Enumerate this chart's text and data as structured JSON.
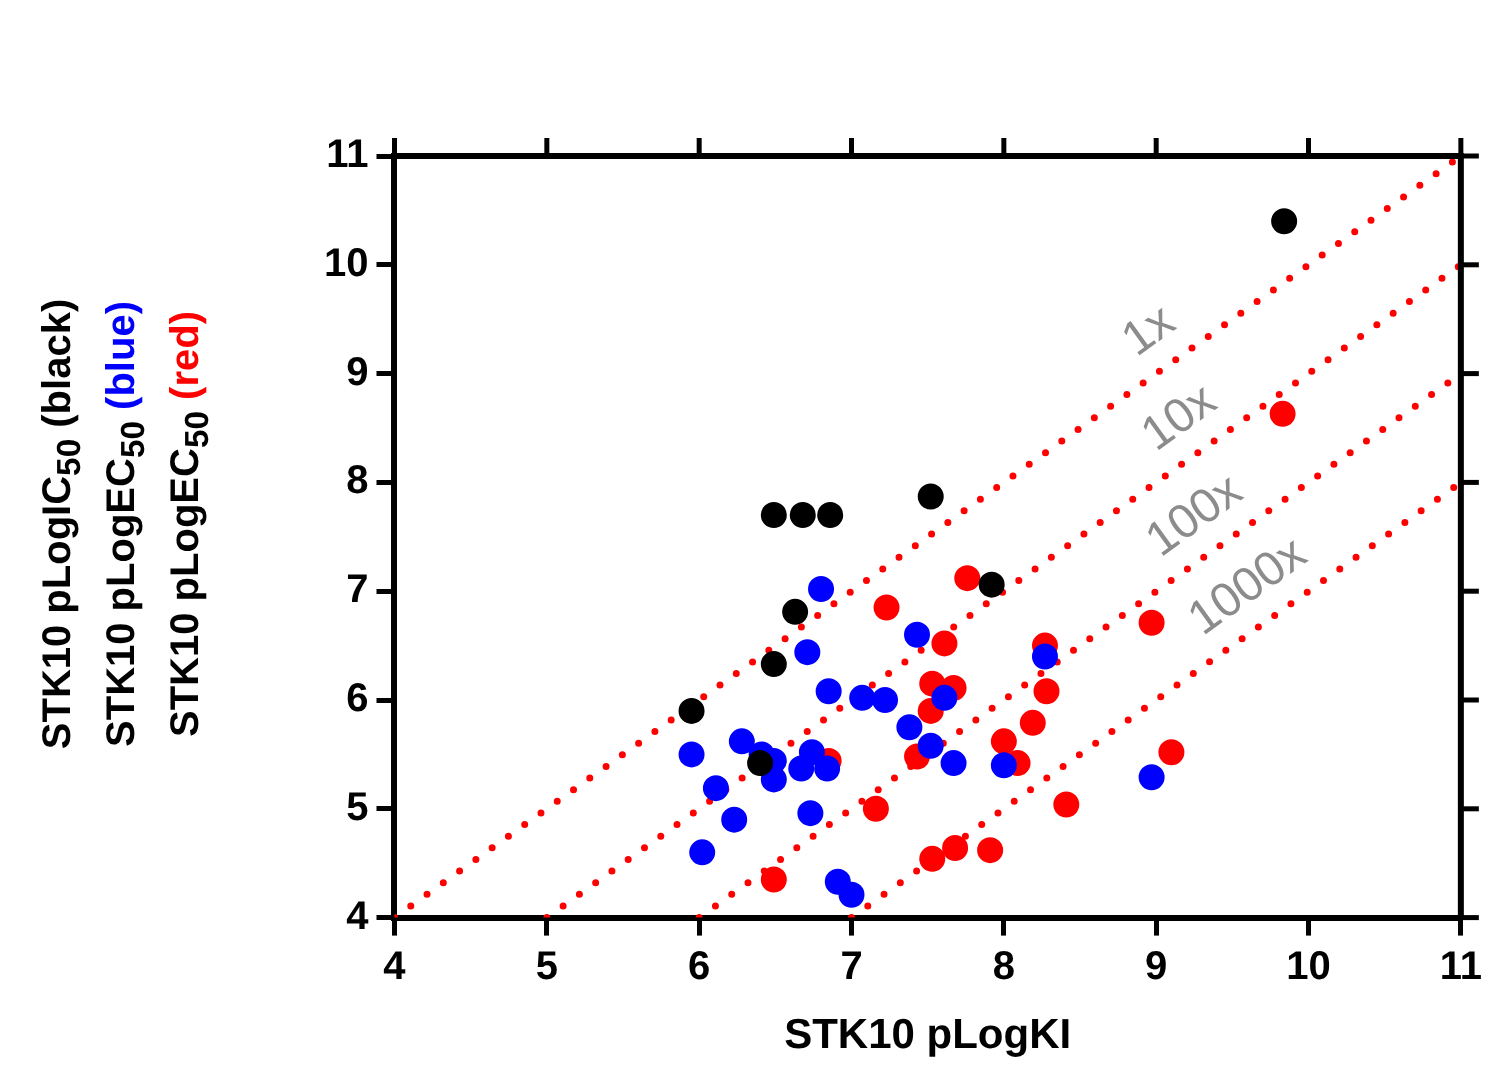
{
  "chart_data": {
    "type": "scatter",
    "xlabel": "STK10 pLogKI",
    "ylabel": "STK10 pLogIC$_{50}$ (black)\nSTK10 pLogEC$_{50}$ (blue)\nSTK10 pLogEC$_{50}$ (red)",
    "xlim": [
      4,
      11
    ],
    "xticks": [
      4,
      5,
      6,
      7,
      8,
      9,
      10,
      11
    ],
    "ylim": [
      4,
      11
    ],
    "yticks": [
      4,
      5,
      6,
      7,
      8,
      9,
      10,
      11
    ],
    "grid": false,
    "legend": false,
    "series": [
      {
        "type": "line",
        "color": "#ff0000",
        "line_style": "dotted",
        "marker": "none",
        "x": [
          4,
          11
        ],
        "values": [
          4,
          11
        ]
      },
      {
        "type": "line",
        "color": "#ff0000",
        "line_style": "dotted",
        "marker": "none",
        "x": [
          5,
          11
        ],
        "values": [
          4,
          10
        ]
      },
      {
        "type": "line",
        "color": "#ff0000",
        "line_style": "dotted",
        "marker": "none",
        "x": [
          6,
          11
        ],
        "values": [
          4,
          9
        ]
      },
      {
        "type": "line",
        "color": "#ff0000",
        "line_style": "dotted",
        "marker": "none",
        "x": [
          7,
          11
        ],
        "values": [
          4,
          8
        ]
      },
      {
        "color": "#000000",
        "marker": "circle",
        "x": [
          5.95,
          6.49,
          6.49,
          6.68,
          6.86,
          6.63,
          6.4,
          7.52,
          7.92,
          9.84
        ],
        "values": [
          5.9,
          6.33,
          7.7,
          7.7,
          7.7,
          6.81,
          5.42,
          7.87,
          7.06,
          10.4
        ]
      },
      {
        "color": "#0000ff",
        "marker": "circle",
        "x": [
          6.8,
          6.71,
          6.85,
          7.07,
          7.22,
          7.43,
          7.38,
          7.52,
          7.67,
          7.61,
          5.95,
          6.28,
          6.41,
          6.49,
          6.49,
          6.67,
          6.74,
          6.84,
          6.11,
          6.23,
          6.73,
          6.02,
          6.91,
          7.0,
          8.0,
          8.27,
          8.97
        ],
        "values": [
          7.02,
          6.44,
          6.08,
          6.02,
          6.0,
          6.6,
          5.75,
          5.58,
          5.42,
          6.02,
          5.5,
          5.62,
          5.5,
          5.44,
          5.27,
          5.37,
          5.52,
          5.37,
          5.19,
          4.9,
          4.96,
          4.6,
          4.33,
          4.21,
          5.4,
          6.4,
          5.29
        ]
      },
      {
        "color": "#ff0000",
        "marker": "circle",
        "x": [
          6.49,
          6.85,
          7.16,
          7.23,
          7.43,
          7.52,
          7.53,
          7.53,
          7.61,
          7.67,
          7.68,
          7.76,
          7.91,
          8.0,
          8.09,
          8.19,
          8.27,
          8.28,
          8.41,
          8.97,
          9.1,
          9.83
        ],
        "values": [
          4.35,
          5.44,
          5.0,
          6.85,
          5.48,
          5.9,
          6.15,
          4.54,
          6.52,
          6.11,
          4.64,
          7.12,
          4.62,
          5.62,
          5.42,
          5.79,
          6.5,
          6.08,
          5.04,
          6.71,
          5.52,
          8.63
        ]
      }
    ],
    "annotations": [
      {
        "text": "1x",
        "x": 9.1,
        "y": 9.1
      },
      {
        "text": "10x",
        "x": 9.3,
        "y": 8.3
      },
      {
        "text": "100x",
        "x": 9.4,
        "y": 7.4
      },
      {
        "text": "1000x",
        "x": 9.75,
        "y": 6.75
      }
    ]
  }
}
